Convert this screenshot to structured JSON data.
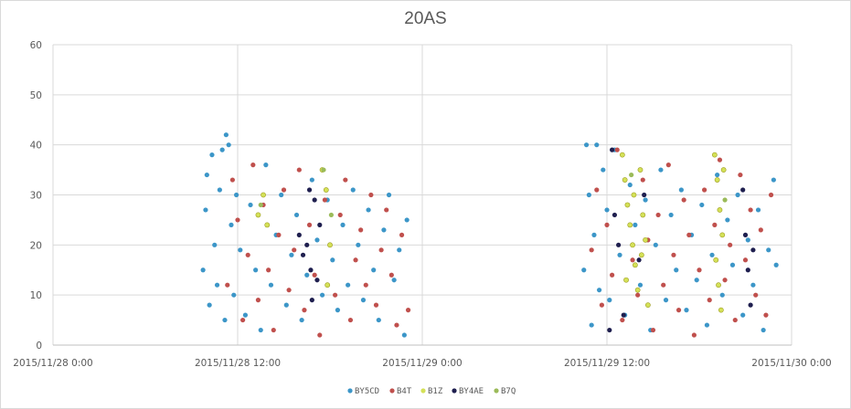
{
  "chart_data": {
    "type": "scatter",
    "title": "20AS",
    "xlabel": "",
    "ylabel": "",
    "x_ticks": [
      "2015/11/28 0:00",
      "2015/11/28 12:00",
      "2015/11/29 0:00",
      "2015/11/29 12:00",
      "2015/11/30 0:00"
    ],
    "xlim": [
      "2015/11/28 0:00",
      "2015/11/30 0:00"
    ],
    "ylim": [
      0,
      60
    ],
    "y_ticks": [
      0,
      10,
      20,
      30,
      40,
      50,
      60
    ],
    "grid": "vertical and horizontal",
    "legend_position": "bottom",
    "series": [
      {
        "name": "BY5CD",
        "color": "#3c96c8",
        "points": [
          [
            "2015/11/28 09:45",
            15
          ],
          [
            "2015/11/28 09:55",
            27
          ],
          [
            "2015/11/28 10:00",
            34
          ],
          [
            "2015/11/28 10:10",
            8
          ],
          [
            "2015/11/28 10:20",
            38
          ],
          [
            "2015/11/28 10:30",
            20
          ],
          [
            "2015/11/28 10:40",
            12
          ],
          [
            "2015/11/28 10:50",
            31
          ],
          [
            "2015/11/28 11:00",
            39
          ],
          [
            "2015/11/28 11:10",
            5
          ],
          [
            "2015/11/28 11:15",
            42
          ],
          [
            "2015/11/28 11:25",
            40
          ],
          [
            "2015/11/28 11:35",
            24
          ],
          [
            "2015/11/28 11:45",
            10
          ],
          [
            "2015/11/28 11:55",
            30
          ],
          [
            "2015/11/28 12:10",
            19
          ],
          [
            "2015/11/28 12:30",
            6
          ],
          [
            "2015/11/28 12:50",
            28
          ],
          [
            "2015/11/28 13:10",
            15
          ],
          [
            "2015/11/28 13:30",
            3
          ],
          [
            "2015/11/28 13:50",
            36
          ],
          [
            "2015/11/28 14:10",
            12
          ],
          [
            "2015/11/28 14:30",
            22
          ],
          [
            "2015/11/28 14:50",
            30
          ],
          [
            "2015/11/28 15:10",
            8
          ],
          [
            "2015/11/28 15:30",
            18
          ],
          [
            "2015/11/28 15:50",
            26
          ],
          [
            "2015/11/28 16:10",
            5
          ],
          [
            "2015/11/28 16:30",
            14
          ],
          [
            "2015/11/28 16:50",
            33
          ],
          [
            "2015/11/28 17:10",
            21
          ],
          [
            "2015/11/28 17:30",
            10
          ],
          [
            "2015/11/28 17:50",
            29
          ],
          [
            "2015/11/28 18:10",
            17
          ],
          [
            "2015/11/28 18:30",
            7
          ],
          [
            "2015/11/28 18:50",
            24
          ],
          [
            "2015/11/28 19:10",
            12
          ],
          [
            "2015/11/28 19:30",
            31
          ],
          [
            "2015/11/28 19:50",
            20
          ],
          [
            "2015/11/28 20:10",
            9
          ],
          [
            "2015/11/28 20:30",
            27
          ],
          [
            "2015/11/28 20:50",
            15
          ],
          [
            "2015/11/28 21:10",
            5
          ],
          [
            "2015/11/28 21:30",
            23
          ],
          [
            "2015/11/28 21:50",
            30
          ],
          [
            "2015/11/28 22:10",
            13
          ],
          [
            "2015/11/28 22:30",
            19
          ],
          [
            "2015/11/28 22:50",
            2
          ],
          [
            "2015/11/28 23:00",
            25
          ],
          [
            "2015/11/29 10:30",
            15
          ],
          [
            "2015/11/29 10:40",
            40
          ],
          [
            "2015/11/29 10:50",
            30
          ],
          [
            "2015/11/29 11:00",
            4
          ],
          [
            "2015/11/29 11:10",
            22
          ],
          [
            "2015/11/29 11:20",
            40
          ],
          [
            "2015/11/29 11:30",
            11
          ],
          [
            "2015/11/29 11:45",
            35
          ],
          [
            "2015/11/29 12:00",
            27
          ],
          [
            "2015/11/29 12:10",
            9
          ],
          [
            "2015/11/29 12:30",
            39
          ],
          [
            "2015/11/29 12:50",
            18
          ],
          [
            "2015/11/29 13:10",
            6
          ],
          [
            "2015/11/29 13:30",
            32
          ],
          [
            "2015/11/29 13:50",
            24
          ],
          [
            "2015/11/29 14:10",
            12
          ],
          [
            "2015/11/29 14:30",
            29
          ],
          [
            "2015/11/29 14:50",
            3
          ],
          [
            "2015/11/29 15:10",
            20
          ],
          [
            "2015/11/29 15:30",
            35
          ],
          [
            "2015/11/29 15:50",
            9
          ],
          [
            "2015/11/29 16:10",
            26
          ],
          [
            "2015/11/29 16:30",
            15
          ],
          [
            "2015/11/29 16:50",
            31
          ],
          [
            "2015/11/29 17:10",
            7
          ],
          [
            "2015/11/29 17:30",
            22
          ],
          [
            "2015/11/29 17:50",
            13
          ],
          [
            "2015/11/29 18:10",
            28
          ],
          [
            "2015/11/29 18:30",
            4
          ],
          [
            "2015/11/29 18:50",
            18
          ],
          [
            "2015/11/29 19:10",
            34
          ],
          [
            "2015/11/29 19:30",
            10
          ],
          [
            "2015/11/29 19:50",
            25
          ],
          [
            "2015/11/29 20:10",
            16
          ],
          [
            "2015/11/29 20:30",
            30
          ],
          [
            "2015/11/29 20:50",
            6
          ],
          [
            "2015/11/29 21:10",
            21
          ],
          [
            "2015/11/29 21:30",
            12
          ],
          [
            "2015/11/29 21:50",
            27
          ],
          [
            "2015/11/29 22:10",
            3
          ],
          [
            "2015/11/29 22:30",
            19
          ],
          [
            "2015/11/29 22:50",
            33
          ],
          [
            "2015/11/29 23:00",
            16
          ]
        ]
      },
      {
        "name": "B4T",
        "color": "#c0504d",
        "points": [
          [
            "2015/11/28 11:20",
            12
          ],
          [
            "2015/11/28 11:40",
            33
          ],
          [
            "2015/11/28 12:00",
            25
          ],
          [
            "2015/11/28 12:20",
            5
          ],
          [
            "2015/11/28 12:40",
            18
          ],
          [
            "2015/11/28 13:00",
            36
          ],
          [
            "2015/11/28 13:20",
            9
          ],
          [
            "2015/11/28 13:40",
            28
          ],
          [
            "2015/11/28 14:00",
            15
          ],
          [
            "2015/11/28 14:20",
            3
          ],
          [
            "2015/11/28 14:40",
            22
          ],
          [
            "2015/11/28 15:00",
            31
          ],
          [
            "2015/11/28 15:20",
            11
          ],
          [
            "2015/11/28 15:40",
            19
          ],
          [
            "2015/11/28 16:00",
            35
          ],
          [
            "2015/11/28 16:20",
            7
          ],
          [
            "2015/11/28 16:40",
            24
          ],
          [
            "2015/11/28 17:00",
            14
          ],
          [
            "2015/11/28 17:20",
            2
          ],
          [
            "2015/11/28 17:40",
            29
          ],
          [
            "2015/11/28 18:00",
            20
          ],
          [
            "2015/11/28 18:20",
            10
          ],
          [
            "2015/11/28 18:40",
            26
          ],
          [
            "2015/11/28 19:00",
            33
          ],
          [
            "2015/11/28 19:20",
            5
          ],
          [
            "2015/11/28 19:40",
            17
          ],
          [
            "2015/11/28 20:00",
            23
          ],
          [
            "2015/11/28 20:20",
            12
          ],
          [
            "2015/11/28 20:40",
            30
          ],
          [
            "2015/11/28 21:00",
            8
          ],
          [
            "2015/11/28 21:20",
            19
          ],
          [
            "2015/11/28 21:40",
            27
          ],
          [
            "2015/11/28 22:00",
            14
          ],
          [
            "2015/11/28 22:20",
            4
          ],
          [
            "2015/11/28 22:40",
            22
          ],
          [
            "2015/11/28 23:05",
            7
          ],
          [
            "2015/11/29 11:00",
            19
          ],
          [
            "2015/11/29 11:20",
            31
          ],
          [
            "2015/11/29 11:40",
            8
          ],
          [
            "2015/11/29 12:00",
            24
          ],
          [
            "2015/11/29 12:20",
            14
          ],
          [
            "2015/11/29 12:40",
            39
          ],
          [
            "2015/11/29 13:00",
            5
          ],
          [
            "2015/11/29 13:20",
            28
          ],
          [
            "2015/11/29 13:40",
            17
          ],
          [
            "2015/11/29 14:00",
            10
          ],
          [
            "2015/11/29 14:20",
            33
          ],
          [
            "2015/11/29 14:40",
            21
          ],
          [
            "2015/11/29 15:00",
            3
          ],
          [
            "2015/11/29 15:20",
            26
          ],
          [
            "2015/11/29 15:40",
            12
          ],
          [
            "2015/11/29 16:00",
            36
          ],
          [
            "2015/11/29 16:20",
            18
          ],
          [
            "2015/11/29 16:40",
            7
          ],
          [
            "2015/11/29 17:00",
            29
          ],
          [
            "2015/11/29 17:20",
            22
          ],
          [
            "2015/11/29 17:40",
            2
          ],
          [
            "2015/11/29 18:00",
            15
          ],
          [
            "2015/11/29 18:20",
            31
          ],
          [
            "2015/11/29 18:40",
            9
          ],
          [
            "2015/11/29 19:00",
            24
          ],
          [
            "2015/11/29 19:20",
            37
          ],
          [
            "2015/11/29 19:40",
            13
          ],
          [
            "2015/11/29 20:00",
            20
          ],
          [
            "2015/11/29 20:20",
            5
          ],
          [
            "2015/11/29 20:40",
            34
          ],
          [
            "2015/11/29 21:00",
            17
          ],
          [
            "2015/11/29 21:20",
            27
          ],
          [
            "2015/11/29 21:40",
            10
          ],
          [
            "2015/11/29 22:00",
            23
          ],
          [
            "2015/11/29 22:20",
            6
          ],
          [
            "2015/11/29 22:40",
            30
          ]
        ]
      },
      {
        "name": "B1Z",
        "color": "#d4e157",
        "points": [
          [
            "2015/11/28 13:20",
            26
          ],
          [
            "2015/11/28 13:40",
            30
          ],
          [
            "2015/11/28 13:55",
            24
          ],
          [
            "2015/11/28 17:30",
            35
          ],
          [
            "2015/11/28 17:45",
            31
          ],
          [
            "2015/11/28 18:00",
            20
          ],
          [
            "2015/11/28 17:50",
            12
          ],
          [
            "2015/11/29 13:00",
            38
          ],
          [
            "2015/11/29 13:10",
            33
          ],
          [
            "2015/11/29 13:20",
            28
          ],
          [
            "2015/11/29 13:30",
            24
          ],
          [
            "2015/11/29 13:40",
            20
          ],
          [
            "2015/11/29 13:50",
            16
          ],
          [
            "2015/11/29 14:00",
            11
          ],
          [
            "2015/11/29 14:10",
            35
          ],
          [
            "2015/11/29 14:20",
            26
          ],
          [
            "2015/11/29 14:30",
            21
          ],
          [
            "2015/11/29 14:40",
            8
          ],
          [
            "2015/11/29 13:15",
            13
          ],
          [
            "2015/11/29 13:45",
            30
          ],
          [
            "2015/11/29 14:15",
            18
          ],
          [
            "2015/11/29 19:00",
            38
          ],
          [
            "2015/11/29 19:10",
            33
          ],
          [
            "2015/11/29 19:20",
            27
          ],
          [
            "2015/11/29 19:30",
            22
          ],
          [
            "2015/11/29 19:05",
            17
          ],
          [
            "2015/11/29 19:15",
            12
          ],
          [
            "2015/11/29 19:25",
            7
          ],
          [
            "2015/11/29 19:35",
            35
          ]
        ]
      },
      {
        "name": "BY4AE",
        "color": "#1f1f4f",
        "points": [
          [
            "2015/11/28 16:00",
            22
          ],
          [
            "2015/11/28 16:15",
            18
          ],
          [
            "2015/11/28 16:30",
            20
          ],
          [
            "2015/11/28 16:45",
            15
          ],
          [
            "2015/11/28 17:00",
            29
          ],
          [
            "2015/11/28 17:10",
            13
          ],
          [
            "2015/11/28 16:50",
            9
          ],
          [
            "2015/11/28 17:20",
            24
          ],
          [
            "2015/11/28 16:40",
            31
          ],
          [
            "2015/11/29 12:10",
            3
          ],
          [
            "2015/11/29 12:20",
            39
          ],
          [
            "2015/11/29 12:30",
            26
          ],
          [
            "2015/11/29 12:45",
            20
          ],
          [
            "2015/11/29 13:05",
            6
          ],
          [
            "2015/11/29 14:05",
            17
          ],
          [
            "2015/11/29 14:25",
            30
          ],
          [
            "2015/11/29 20:50",
            31
          ],
          [
            "2015/11/29 21:00",
            22
          ],
          [
            "2015/11/29 21:10",
            15
          ],
          [
            "2015/11/29 21:20",
            8
          ],
          [
            "2015/11/29 21:30",
            19
          ]
        ]
      },
      {
        "name": "B7Q",
        "color": "#9bbb59",
        "points": [
          [
            "2015/11/28 13:30",
            28
          ],
          [
            "2015/11/28 17:35",
            35
          ],
          [
            "2015/11/28 18:05",
            26
          ],
          [
            "2015/11/29 13:35",
            34
          ],
          [
            "2015/11/29 19:40",
            29
          ]
        ]
      }
    ]
  }
}
